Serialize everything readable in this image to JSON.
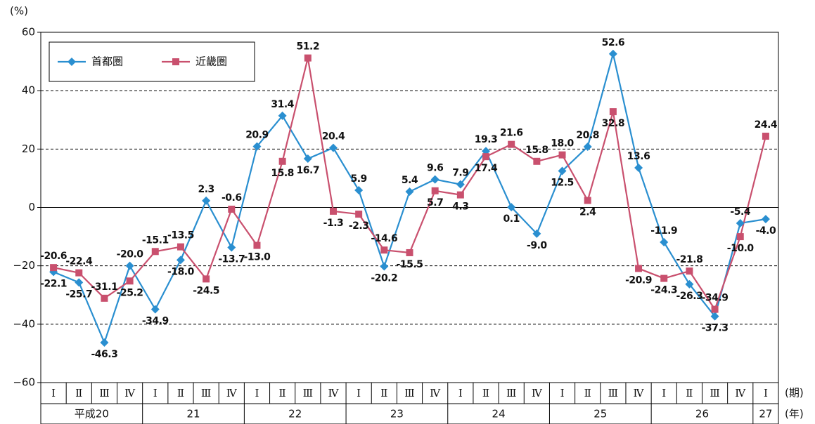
{
  "chart_data": {
    "type": "line",
    "y_label": "(%)",
    "x_unit_quarter": "(期)",
    "x_unit_year": "(年)",
    "categories": [
      "Ⅰ",
      "Ⅱ",
      "Ⅲ",
      "Ⅳ",
      "Ⅰ",
      "Ⅱ",
      "Ⅲ",
      "Ⅳ",
      "Ⅰ",
      "Ⅱ",
      "Ⅲ",
      "Ⅳ",
      "Ⅰ",
      "Ⅱ",
      "Ⅲ",
      "Ⅳ",
      "Ⅰ",
      "Ⅱ",
      "Ⅲ",
      "Ⅳ",
      "Ⅰ",
      "Ⅱ",
      "Ⅲ",
      "Ⅳ",
      "Ⅰ",
      "Ⅱ",
      "Ⅲ",
      "Ⅳ",
      "Ⅰ"
    ],
    "year_labels": [
      "平成20",
      "21",
      "22",
      "23",
      "24",
      "25",
      "26",
      "27"
    ],
    "series": [
      {
        "name": "首都圏",
        "color": "#2a8fd0",
        "marker": "diamond",
        "values": [
          -22.1,
          -25.7,
          -46.3,
          -20,
          -34.9,
          -18,
          2.3,
          -13.7,
          20.9,
          31.4,
          16.7,
          20.4,
          5.9,
          -20.2,
          5.4,
          9.6,
          7.9,
          19.3,
          0.1,
          -9,
          12.5,
          20.8,
          52.6,
          13.6,
          -11.9,
          -26.3,
          -37.3,
          -5.4,
          -4
        ],
        "value_labels": [
          "-22.1",
          "-25.7",
          "-46.3",
          "-20.0",
          "-34.9",
          "-18.0",
          "2.3",
          "-13.7",
          "20.9",
          "31.4",
          "16.7",
          "20.4",
          "5.9",
          "-20.2",
          "5.4",
          "9.6",
          "7.9",
          "19.3",
          "0.1",
          "-9.0",
          "12.5",
          "20.8",
          "52.6",
          "13.6",
          "-11.9",
          "-26.3",
          "-37.3",
          "-5.4",
          "-4.0"
        ]
      },
      {
        "name": "近畿圏",
        "color": "#c9506e",
        "marker": "square",
        "values": [
          -20.6,
          -22.4,
          -31.1,
          -25.2,
          -15.1,
          -13.5,
          -24.5,
          -0.6,
          -13,
          15.8,
          51.2,
          -1.3,
          -2.3,
          -14.6,
          -15.5,
          5.7,
          4.3,
          17.4,
          21.6,
          15.8,
          18,
          2.4,
          32.8,
          -20.9,
          -24.3,
          -21.8,
          -34.9,
          -10,
          24.4
        ],
        "value_labels": [
          "-20.6",
          "-22.4",
          "-31.1",
          "-25.2",
          "-15.1",
          "-13.5",
          "-24.5",
          "-0.6",
          "-13.0",
          "15.8",
          "51.2",
          "-1.3",
          "-2.3",
          "-14.6",
          "-15.5",
          "5.7",
          "4.3",
          "17.4",
          "21.6",
          "15.8",
          "18.0",
          "2.4",
          "32.8",
          "-20.9",
          "-24.3",
          "-21.8",
          "-34.9",
          "-10.0",
          "24.4"
        ]
      }
    ],
    "ylim": [
      -60,
      60
    ],
    "yticks": [
      {
        "value": -60,
        "label": "−60"
      },
      {
        "value": -40,
        "label": "−40"
      },
      {
        "value": -20,
        "label": "−20"
      },
      0,
      20,
      40,
      60
    ],
    "grid": true,
    "legend": "upper left"
  }
}
